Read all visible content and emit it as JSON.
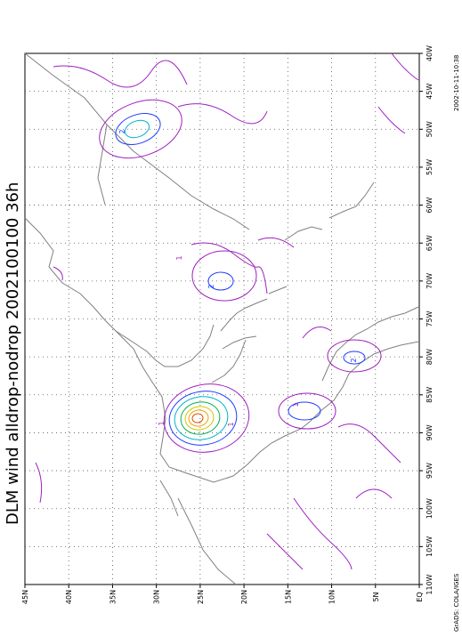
{
  "title": "DLM wind alldrop-nodrop 2002100100 36h",
  "footer_left": "GrADS: COLA/IGES",
  "footer_right": "2002-10-11-10:38",
  "longitude_labels": [
    "40W",
    "45W",
    "50W",
    "55W",
    "60W",
    "65W",
    "70W",
    "75W",
    "80W",
    "85W",
    "90W",
    "95W",
    "100W",
    "105W",
    "110W"
  ],
  "latitude_labels": [
    "EQ",
    "5N",
    "10N",
    "15N",
    "20N",
    "25N",
    "30N",
    "35N",
    "40N",
    "45N"
  ],
  "contour_labels": [
    "1",
    "2",
    "1",
    "2",
    "1",
    "2",
    "1"
  ],
  "colors": {
    "frame": "#000000",
    "coast": "#808080",
    "grid": "#555555",
    "c1": "#a020c0",
    "c2": "#1e3cff",
    "c3": "#00b4c8",
    "c4": "#00b050",
    "c5": "#c8c800",
    "c6": "#f0a000",
    "c7": "#e05000"
  }
}
